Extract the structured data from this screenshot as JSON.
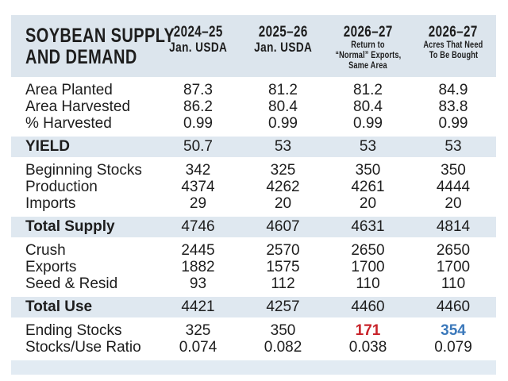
{
  "colors": {
    "header_band": "#dce5ed",
    "row_band": "#dfe8f0",
    "footer_band": "#e2ebf3",
    "text": "#1d1d1d",
    "negative_highlight": "#c8232a",
    "positive_highlight": "#3c79bb"
  },
  "chart_data": {
    "type": "table",
    "title": "SOYBEAN SUPPLY AND DEMAND",
    "title_lines": [
      "SOYBEAN SUPPLY",
      "AND DEMAND"
    ],
    "columns": [
      {
        "year": "2024–25",
        "sub": [
          "Jan. USDA"
        ]
      },
      {
        "year": "2025–26",
        "sub": [
          "Jan. USDA"
        ]
      },
      {
        "year": "2026–27",
        "sub": [
          "Return to",
          "“Normal” Exports,",
          "Same Area"
        ]
      },
      {
        "year": "2026–27",
        "sub": [
          "Acres That Need",
          "To Be Bought"
        ]
      }
    ],
    "sections": [
      {
        "kind": "rows",
        "rows": [
          {
            "label": "Area Planted",
            "values": [
              "87.3",
              "81.2",
              "81.2",
              "84.9"
            ]
          },
          {
            "label": "Area Harvested",
            "values": [
              "86.2",
              "80.4",
              "80.4",
              "83.8"
            ]
          },
          {
            "label": "% Harvested",
            "values": [
              "0.99",
              "0.99",
              "0.99",
              "0.99"
            ]
          }
        ]
      },
      {
        "kind": "band",
        "rows": [
          {
            "label": "YIELD",
            "values": [
              "50.7",
              "53",
              "53",
              "53"
            ]
          }
        ]
      },
      {
        "kind": "rows",
        "rows": [
          {
            "label": "Beginning Stocks",
            "values": [
              "342",
              "325",
              "350",
              "350"
            ]
          },
          {
            "label": "Production",
            "values": [
              "4374",
              "4262",
              "4261",
              "4444"
            ]
          },
          {
            "label": "Imports",
            "values": [
              "29",
              "20",
              "20",
              "20"
            ]
          }
        ]
      },
      {
        "kind": "band",
        "rows": [
          {
            "label": "Total Supply",
            "values": [
              "4746",
              "4607",
              "4631",
              "4814"
            ]
          }
        ]
      },
      {
        "kind": "rows",
        "rows": [
          {
            "label": "Crush",
            "values": [
              "2445",
              "2570",
              "2650",
              "2650"
            ]
          },
          {
            "label": "Exports",
            "values": [
              "1882",
              "1575",
              "1700",
              "1700"
            ]
          },
          {
            "label": "Seed & Resid",
            "values": [
              "93",
              "112",
              "110",
              "110"
            ]
          }
        ]
      },
      {
        "kind": "band",
        "rows": [
          {
            "label": "Total Use",
            "values": [
              "4421",
              "4257",
              "4460",
              "4460"
            ]
          }
        ]
      },
      {
        "kind": "rows",
        "rows": [
          {
            "label": "Ending Stocks",
            "values": [
              "325",
              "350",
              "171",
              "354"
            ]
          },
          {
            "label": "Stocks/Use Ratio",
            "values": [
              "0.074",
              "0.082",
              "0.038",
              "0.079"
            ]
          }
        ]
      }
    ]
  }
}
